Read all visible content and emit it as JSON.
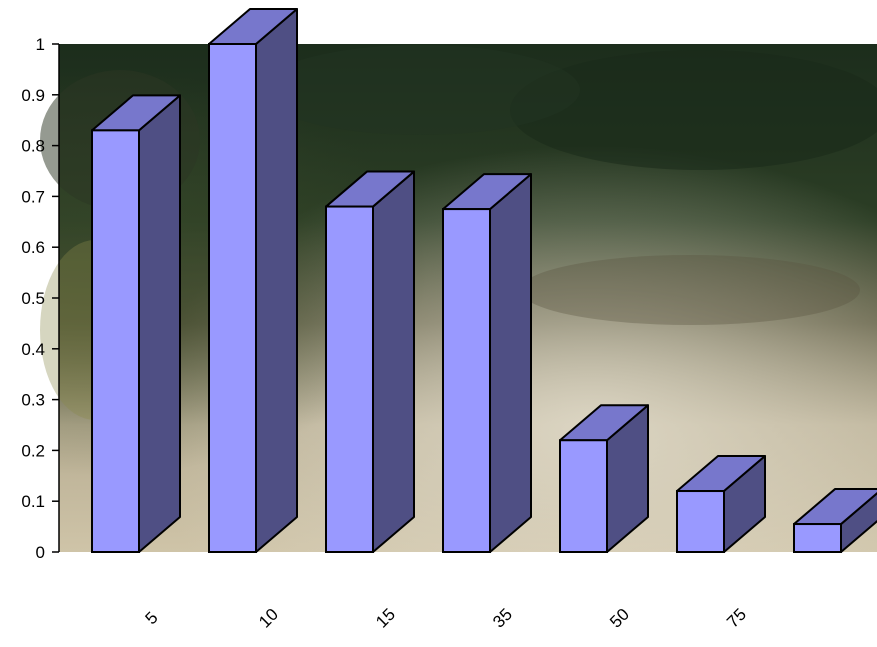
{
  "chart_data": {
    "type": "bar",
    "style": "3d-column",
    "categories": [
      "5",
      "10",
      "15",
      "35",
      "50",
      "75",
      ""
    ],
    "values": [
      0.83,
      1.0,
      0.68,
      0.675,
      0.22,
      0.12,
      0.055
    ],
    "ylim": [
      0,
      1
    ],
    "yticks": [
      "0",
      "0.1",
      "0.2",
      "0.3",
      "0.4",
      "0.5",
      "0.6",
      "0.7",
      "0.8",
      "0.9",
      "1"
    ],
    "title": "",
    "xlabel": "",
    "ylabel": "",
    "grid": false,
    "legend": "none",
    "background": "photograph of a forest clearing (trees over dirt ground)",
    "colors": {
      "bar_front": "#9999ff",
      "bar_top": "#7777cc",
      "bar_side": "#4f4f84",
      "outline": "#000000"
    }
  }
}
